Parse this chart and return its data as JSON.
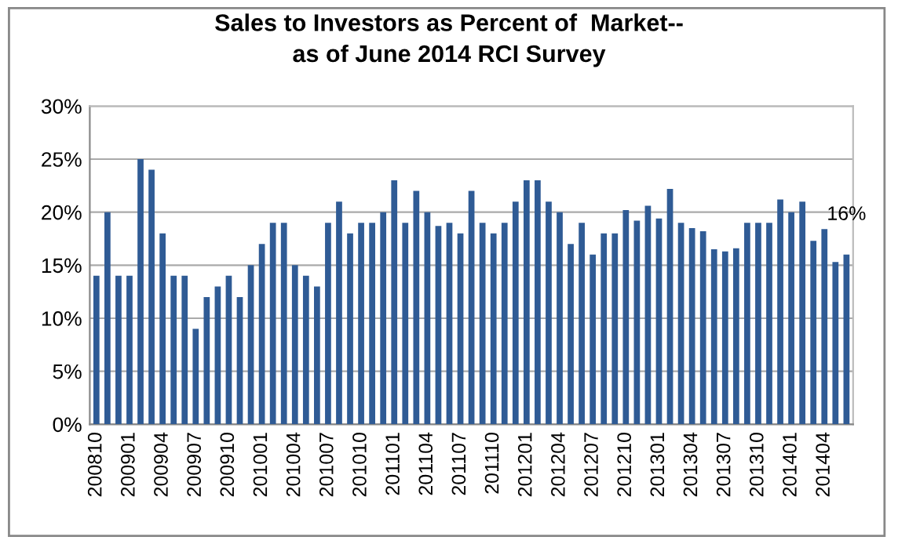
{
  "chart_data": {
    "type": "bar",
    "title": "Sales to Investors as Percent of  Market--\nas of June 2014 RCI Survey",
    "categories": [
      "200810",
      null,
      null,
      "200901",
      null,
      null,
      "200904",
      null,
      null,
      "200907",
      null,
      null,
      "200910",
      null,
      null,
      "201001",
      null,
      null,
      "201004",
      null,
      null,
      "201007",
      null,
      null,
      "201010",
      null,
      null,
      "201101",
      null,
      null,
      "201104",
      null,
      null,
      "201107",
      null,
      null,
      "201110",
      null,
      null,
      "201201",
      null,
      null,
      "201204",
      null,
      null,
      "201207",
      null,
      null,
      "201210",
      null,
      null,
      "201301",
      null,
      null,
      "201304",
      null,
      null,
      "201307",
      null,
      null,
      "201310",
      null,
      null,
      "201401",
      null,
      null,
      "201404",
      null,
      null
    ],
    "values": [
      14,
      20,
      14,
      14,
      25,
      24,
      18,
      14,
      14,
      9,
      12,
      13,
      14,
      12,
      15,
      17,
      19,
      19,
      15,
      14,
      13,
      19,
      21,
      18,
      19,
      19,
      20,
      23,
      19,
      22,
      20,
      18.7,
      19,
      18,
      22,
      19,
      18,
      19,
      21,
      23,
      23,
      21,
      20,
      17,
      19,
      16,
      18,
      18,
      20.2,
      19.2,
      20.6,
      19.4,
      22.2,
      19,
      18.5,
      18.2,
      16.5,
      16.3,
      16.6,
      19,
      19,
      19,
      21.2,
      20,
      21,
      17.3,
      18.4,
      15.3,
      16
    ],
    "value_labels": [
      null,
      null,
      null,
      null,
      null,
      null,
      null,
      null,
      null,
      null,
      null,
      null,
      null,
      null,
      null,
      null,
      null,
      null,
      null,
      null,
      null,
      null,
      null,
      null,
      null,
      null,
      null,
      null,
      null,
      null,
      null,
      null,
      null,
      null,
      null,
      null,
      null,
      null,
      null,
      null,
      null,
      null,
      null,
      null,
      null,
      null,
      null,
      null,
      null,
      null,
      null,
      null,
      null,
      null,
      null,
      null,
      null,
      null,
      null,
      null,
      null,
      null,
      null,
      null,
      null,
      null,
      null,
      null,
      "16%"
    ],
    "color": "#2f5b95",
    "ylim": [
      0,
      30
    ],
    "yticks": [
      {
        "value": 0,
        "label": "0%"
      },
      {
        "value": 5,
        "label": "5%"
      },
      {
        "value": 10,
        "label": "10%"
      },
      {
        "value": 15,
        "label": "15%"
      },
      {
        "value": 20,
        "label": "20%"
      },
      {
        "value": 25,
        "label": "25%"
      },
      {
        "value": 30,
        "label": "30%"
      }
    ],
    "grid": "y"
  }
}
